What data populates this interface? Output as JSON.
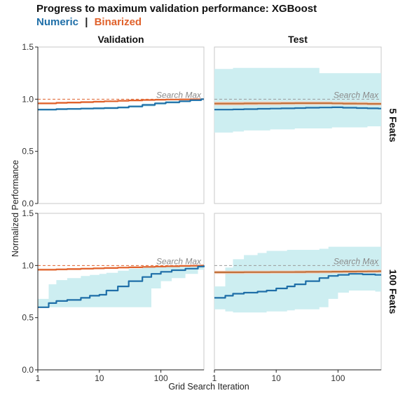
{
  "chart_data": {
    "type": "line",
    "title": "Progress to maximum validation performance: XGBoost",
    "subtitle": {
      "series_a": "Numeric",
      "separator": "|",
      "series_b": "Binarized"
    },
    "xlabel": "Grid Search Iteration",
    "ylabel": "Normalized Performance",
    "x_scale": "log10",
    "xlim": [
      1,
      500
    ],
    "ylim": [
      0,
      1.5
    ],
    "x_ticks": [
      1,
      10,
      100
    ],
    "x_tick_labels": [
      "1",
      "10",
      "100"
    ],
    "y_ticks": [
      0,
      0.5,
      1,
      1.5
    ],
    "y_tick_labels": [
      "0.0",
      "0.5",
      "1.0",
      "1.5"
    ],
    "reference_line": {
      "value": 1.0,
      "label": "Search Max"
    },
    "columns": [
      "Validation",
      "Test"
    ],
    "rows": [
      "5 Feats",
      "100 Feats"
    ],
    "grid": false,
    "colors": {
      "numeric": "#1f6fa8",
      "binarized": "#e0622c",
      "binarized_test": "#c0703a",
      "numeric_band": "#cdeef1",
      "binarized_band": "#f6cdb8",
      "reference": "#e0622c",
      "reference_test": "#9a9a9a"
    },
    "panels": [
      {
        "row": "5 Feats",
        "col": "Validation",
        "series": [
          {
            "key": "numeric",
            "x": [
              1,
              2,
              3,
              5,
              8,
              12,
              20,
              30,
              50,
              80,
              120,
              200,
              300,
              450
            ],
            "values": [
              0.9,
              0.905,
              0.907,
              0.91,
              0.912,
              0.915,
              0.92,
              0.93,
              0.945,
              0.96,
              0.97,
              0.98,
              0.99,
              1.0
            ],
            "lower": [
              0.89,
              0.895,
              0.897,
              0.9,
              0.902,
              0.905,
              0.91,
              0.918,
              0.93,
              0.945,
              0.958,
              0.97,
              0.983,
              0.995
            ],
            "upper": [
              0.91,
              0.915,
              0.917,
              0.92,
              0.923,
              0.926,
              0.932,
              0.942,
              0.958,
              0.972,
              0.982,
              0.99,
              0.997,
              1.0
            ]
          },
          {
            "key": "binarized",
            "x": [
              1,
              2,
              3,
              5,
              8,
              12,
              20,
              30,
              50,
              80,
              120,
              200,
              300,
              450
            ],
            "values": [
              0.96,
              0.965,
              0.968,
              0.972,
              0.976,
              0.98,
              0.985,
              0.988,
              0.992,
              0.995,
              0.997,
              0.998,
              0.999,
              1.0
            ],
            "lower": [
              0.95,
              0.955,
              0.958,
              0.962,
              0.967,
              0.972,
              0.978,
              0.982,
              0.987,
              0.991,
              0.994,
              0.996,
              0.998,
              1.0
            ],
            "upper": [
              0.97,
              0.974,
              0.977,
              0.98,
              0.983,
              0.986,
              0.99,
              0.993,
              0.996,
              0.998,
              0.999,
              1.0,
              1.0,
              1.0
            ]
          }
        ]
      },
      {
        "row": "5 Feats",
        "col": "Test",
        "series": [
          {
            "key": "numeric",
            "x": [
              1,
              2,
              3,
              5,
              8,
              12,
              20,
              30,
              50,
              80,
              120,
              200,
              300,
              450
            ],
            "values": [
              0.9,
              0.902,
              0.905,
              0.908,
              0.91,
              0.912,
              0.915,
              0.918,
              0.92,
              0.922,
              0.918,
              0.915,
              0.912,
              0.91
            ],
            "lower": [
              0.68,
              0.69,
              0.7,
              0.7,
              0.71,
              0.71,
              0.72,
              0.72,
              0.72,
              0.73,
              0.73,
              0.73,
              0.74,
              0.74
            ],
            "upper": [
              1.29,
              1.3,
              1.3,
              1.3,
              1.3,
              1.3,
              1.3,
              1.3,
              1.25,
              1.25,
              1.25,
              1.25,
              1.25,
              1.25
            ]
          },
          {
            "key": "binarized",
            "x": [
              1,
              2,
              3,
              5,
              8,
              12,
              20,
              30,
              50,
              80,
              120,
              200,
              300,
              450
            ],
            "values": [
              0.958,
              0.958,
              0.959,
              0.96,
              0.96,
              0.961,
              0.962,
              0.962,
              0.962,
              0.96,
              0.958,
              0.957,
              0.955,
              0.955
            ],
            "lower": [
              0.94,
              0.94,
              0.942,
              0.943,
              0.944,
              0.945,
              0.946,
              0.946,
              0.946,
              0.945,
              0.943,
              0.942,
              0.94,
              0.94
            ],
            "upper": [
              0.975,
              0.976,
              0.977,
              0.978,
              0.978,
              0.978,
              0.979,
              0.979,
              0.979,
              0.977,
              0.975,
              0.973,
              0.971,
              0.97
            ]
          }
        ]
      },
      {
        "row": "100 Feats",
        "col": "Validation",
        "series": [
          {
            "key": "numeric",
            "x": [
              1,
              1.5,
              2,
              3,
              5,
              7,
              10,
              13,
              20,
              30,
              50,
              70,
              100,
              150,
              250,
              400,
              500
            ],
            "values": [
              0.6,
              0.64,
              0.66,
              0.67,
              0.69,
              0.71,
              0.72,
              0.76,
              0.8,
              0.85,
              0.89,
              0.92,
              0.94,
              0.955,
              0.97,
              0.99,
              1.0
            ],
            "lower": [
              0.6,
              0.6,
              0.6,
              0.6,
              0.6,
              0.6,
              0.6,
              0.6,
              0.6,
              0.6,
              0.6,
              0.78,
              0.85,
              0.88,
              0.92,
              0.96,
              0.98
            ],
            "upper": [
              0.68,
              0.82,
              0.86,
              0.88,
              0.9,
              0.91,
              0.92,
              0.93,
              0.95,
              0.97,
              0.985,
              0.99,
              0.995,
              1.0,
              1.0,
              1.0,
              1.0
            ]
          },
          {
            "key": "binarized",
            "x": [
              1,
              2,
              3,
              5,
              8,
              12,
              20,
              30,
              50,
              80,
              120,
              200,
              300,
              450
            ],
            "values": [
              0.96,
              0.963,
              0.966,
              0.97,
              0.973,
              0.976,
              0.98,
              0.983,
              0.987,
              0.99,
              0.993,
              0.996,
              0.998,
              1.0
            ],
            "lower": [
              0.95,
              0.953,
              0.956,
              0.96,
              0.964,
              0.968,
              0.973,
              0.977,
              0.982,
              0.986,
              0.99,
              0.994,
              0.997,
              1.0
            ],
            "upper": [
              0.97,
              0.972,
              0.975,
              0.978,
              0.981,
              0.984,
              0.987,
              0.99,
              0.993,
              0.995,
              0.997,
              0.999,
              1.0,
              1.0
            ]
          }
        ]
      },
      {
        "row": "100 Feats",
        "col": "Test",
        "series": [
          {
            "key": "numeric",
            "x": [
              1,
              1.5,
              2,
              3,
              5,
              7,
              10,
              15,
              20,
              30,
              50,
              70,
              100,
              150,
              250,
              400
            ],
            "values": [
              0.69,
              0.71,
              0.73,
              0.74,
              0.75,
              0.76,
              0.78,
              0.8,
              0.82,
              0.85,
              0.88,
              0.9,
              0.91,
              0.92,
              0.915,
              0.91
            ],
            "lower": [
              0.58,
              0.56,
              0.55,
              0.55,
              0.55,
              0.56,
              0.56,
              0.57,
              0.58,
              0.58,
              0.6,
              0.68,
              0.74,
              0.76,
              0.76,
              0.75
            ],
            "upper": [
              0.8,
              0.98,
              1.06,
              1.1,
              1.12,
              1.14,
              1.14,
              1.15,
              1.15,
              1.15,
              1.16,
              1.18,
              1.18,
              1.18,
              1.18,
              1.18
            ]
          },
          {
            "key": "binarized",
            "x": [
              1,
              2,
              3,
              5,
              8,
              12,
              20,
              30,
              50,
              80,
              120,
              200,
              300,
              450
            ],
            "values": [
              0.935,
              0.935,
              0.936,
              0.936,
              0.937,
              0.937,
              0.938,
              0.939,
              0.94,
              0.941,
              0.942,
              0.943,
              0.944,
              0.945
            ],
            "lower": [
              0.92,
              0.92,
              0.921,
              0.921,
              0.922,
              0.922,
              0.923,
              0.924,
              0.925,
              0.926,
              0.927,
              0.928,
              0.929,
              0.93
            ],
            "upper": [
              0.95,
              0.95,
              0.951,
              0.951,
              0.952,
              0.952,
              0.953,
              0.954,
              0.955,
              0.956,
              0.957,
              0.958,
              0.959,
              0.96
            ]
          }
        ]
      }
    ]
  }
}
